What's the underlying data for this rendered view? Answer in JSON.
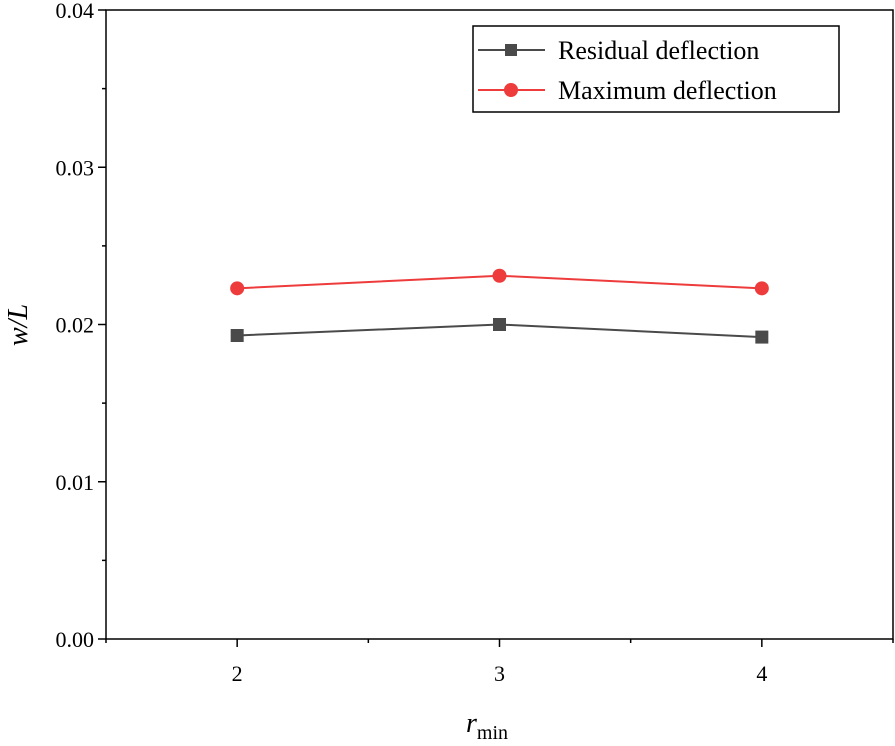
{
  "chart_data": {
    "type": "line",
    "title": "",
    "xlabel": "r",
    "xlabel_subscript": "min",
    "ylabel": "w/L",
    "x": [
      2,
      3,
      4
    ],
    "xlim": [
      1.5,
      4.5
    ],
    "ylim": [
      0.0,
      0.04
    ],
    "xticks": [
      2,
      3,
      4
    ],
    "xtick_labels": [
      "2",
      "3",
      "4"
    ],
    "yticks": [
      0.0,
      0.01,
      0.02,
      0.03,
      0.04
    ],
    "ytick_labels": [
      "0.00",
      "0.01",
      "0.02",
      "0.03",
      "0.04"
    ],
    "grid": false,
    "legend_position": "top-right",
    "series": [
      {
        "name": "Residual deflection",
        "values": [
          0.0193,
          0.02,
          0.0192
        ],
        "color": "#4a4a4a",
        "marker": "square"
      },
      {
        "name": "Maximum deflection",
        "values": [
          0.0223,
          0.0231,
          0.0223
        ],
        "color": "#ee3b3b",
        "marker": "circle"
      }
    ]
  }
}
